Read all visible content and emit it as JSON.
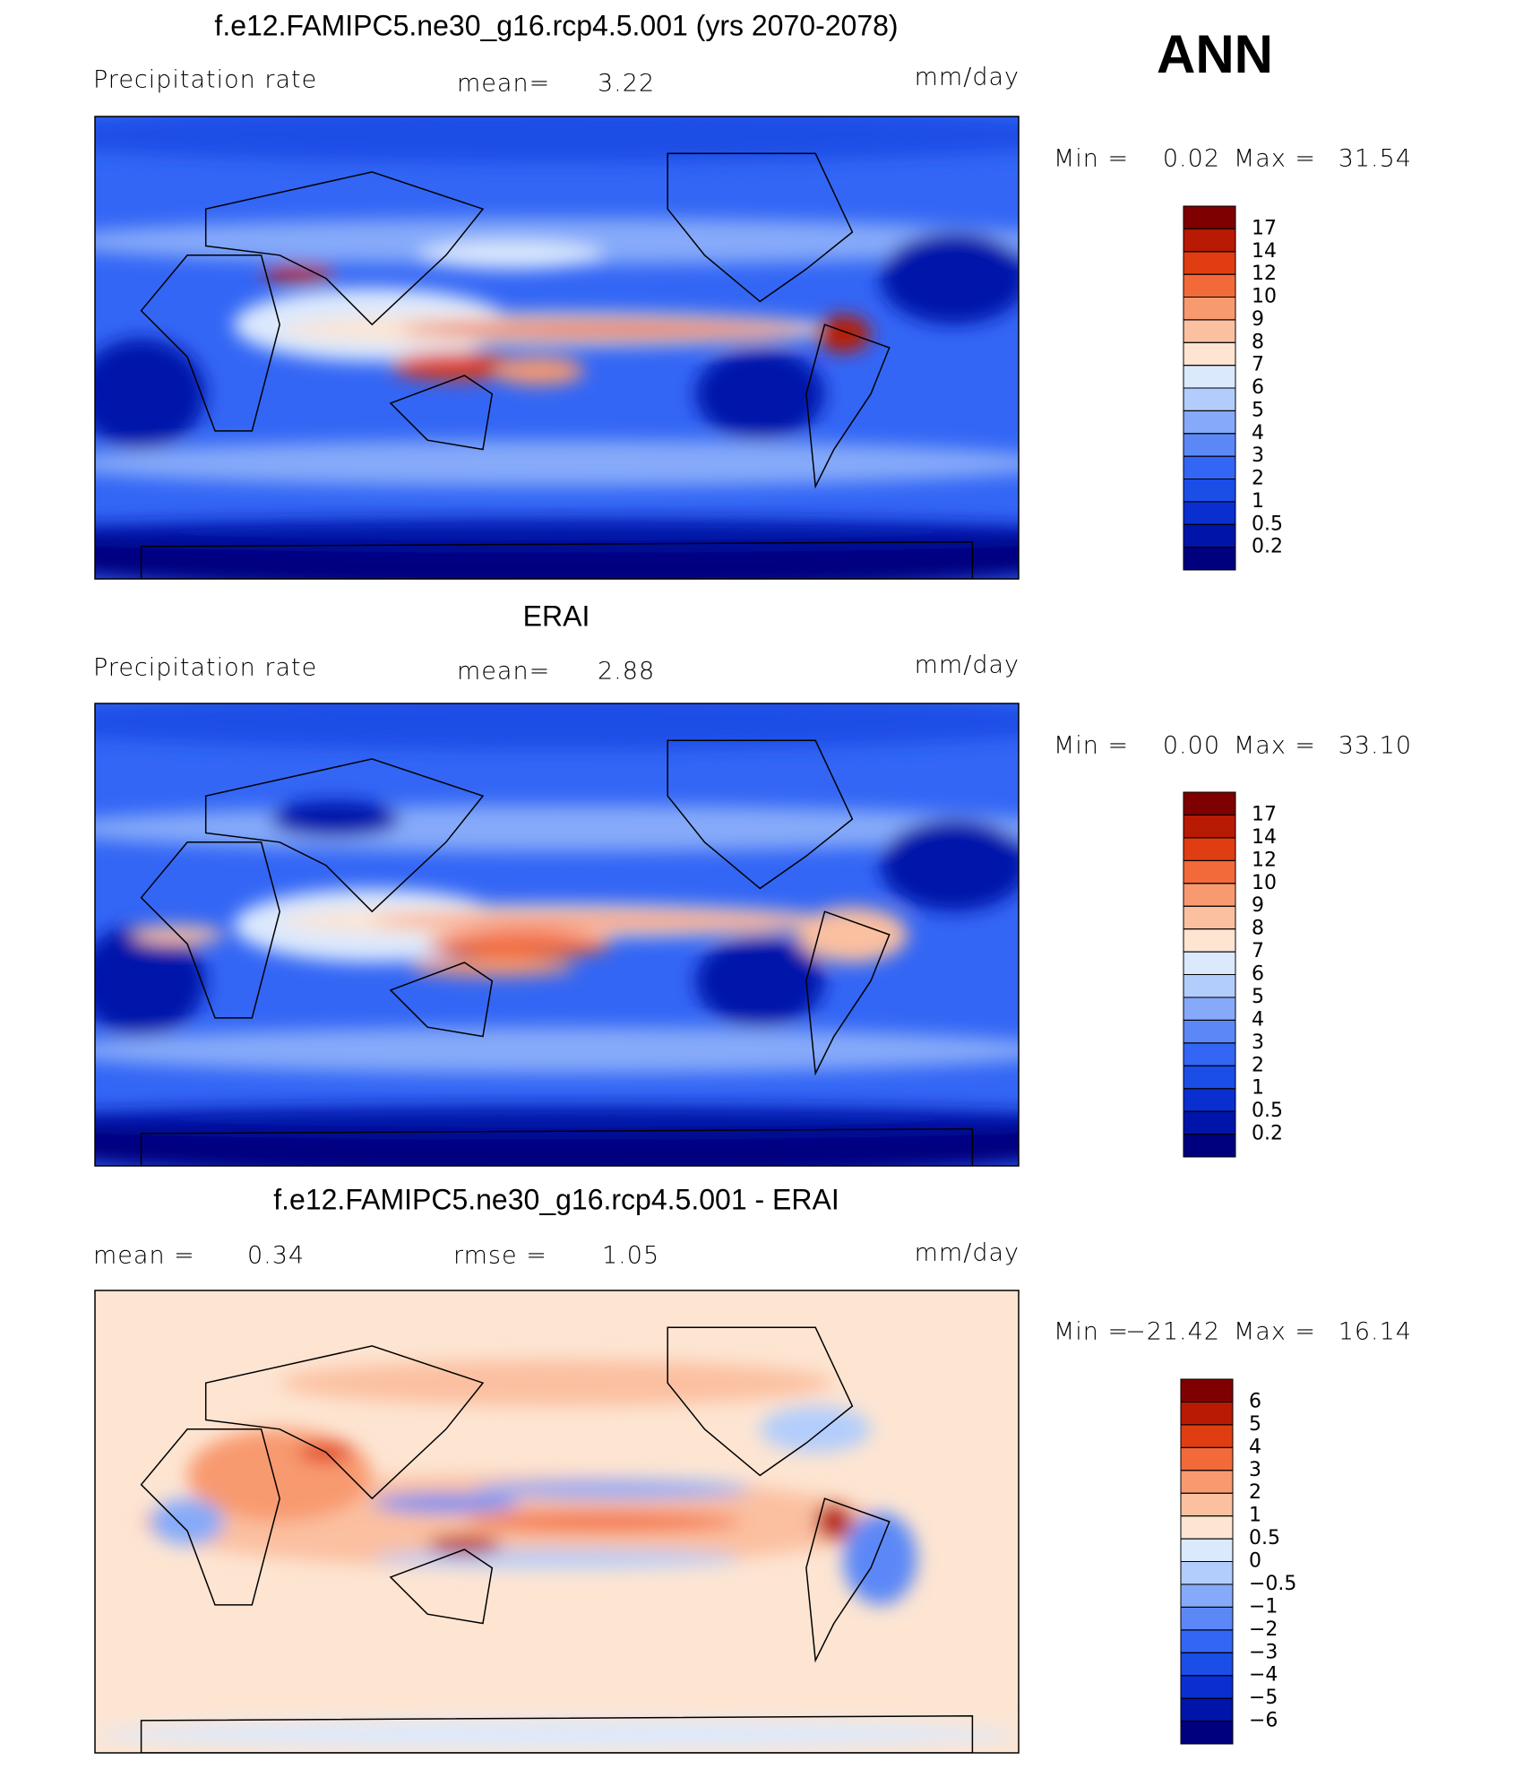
{
  "season": "ANN",
  "colormap": [
    "#00007f",
    "#0014aa",
    "#0a2fd0",
    "#1a4ee6",
    "#3366f5",
    "#5c88f7",
    "#86aaf9",
    "#b2cdfc",
    "#dbe9fd",
    "#fde5d2",
    "#fbc0a0",
    "#f89a70",
    "#f36a3a",
    "#e03e12",
    "#b81a04",
    "#7f0000"
  ],
  "panels": [
    {
      "title": "f.e12.FAMIPC5.ne30_g16.rcp4.5.001 (yrs 2070-2078)",
      "left_label": "Precipitation  rate",
      "mean_label": "mean=",
      "mean": 3.22,
      "units": "mm/day",
      "min_label": "Min =",
      "min": 0.02,
      "max_label": "Max =",
      "max": 31.54,
      "levels": [
        0.2,
        0.5,
        1,
        2,
        3,
        4,
        5,
        6,
        7,
        8,
        9,
        10,
        12,
        14,
        17
      ]
    },
    {
      "title": "ERAI",
      "left_label": "Precipitation  rate",
      "mean_label": "mean=",
      "mean": 2.88,
      "units": "mm/day",
      "min_label": "Min =",
      "min": {
        "value": 0,
        "label": "0.00"
      },
      "max_label": "Max =",
      "max": {
        "value": 33.1,
        "label": "33.10"
      },
      "levels": [
        0.2,
        0.5,
        1,
        2,
        3,
        4,
        5,
        6,
        7,
        8,
        9,
        10,
        12,
        14,
        17
      ]
    },
    {
      "title": "f.e12.FAMIPC5.ne30_g16.rcp4.5.001 - ERAI",
      "mean_label": "mean =",
      "mean": 0.34,
      "rmse_label": "rmse =",
      "rmse": 1.05,
      "units": "mm/day",
      "min_label": "Min =",
      "min": {
        "value": -21.42,
        "label": "−21.42"
      },
      "max_label": "Max =",
      "max": 16.14,
      "levels": [
        {
          "value": -6,
          "label": "−6"
        },
        {
          "value": -5,
          "label": "−5"
        },
        {
          "value": -4,
          "label": "−4"
        },
        {
          "value": -3,
          "label": "−3"
        },
        {
          "value": -2,
          "label": "−2"
        },
        {
          "value": -1,
          "label": "−1"
        },
        {
          "value": -0.5,
          "label": "−0.5"
        },
        0,
        0.5,
        1,
        2,
        3,
        4,
        5,
        6
      ]
    }
  ]
}
